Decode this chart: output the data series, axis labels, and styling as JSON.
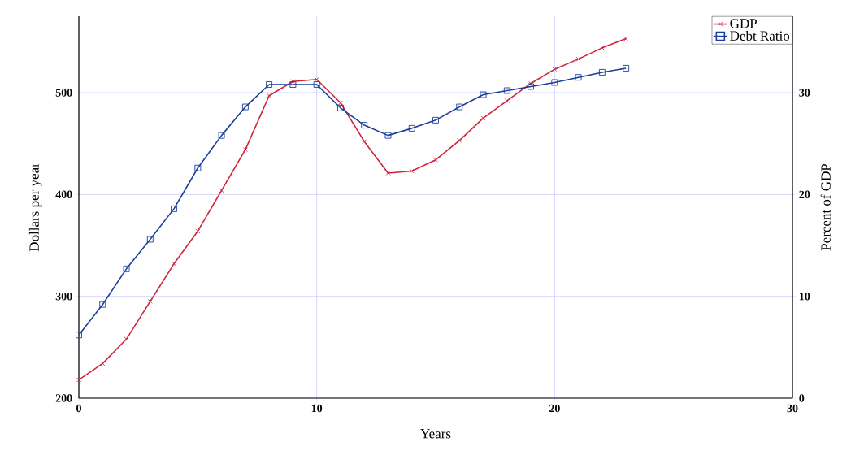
{
  "chart_data": {
    "type": "line",
    "xlabel": "Years",
    "ylabel": "Dollars per year",
    "y2label": "Percent of GDP",
    "x": [
      0,
      1,
      2,
      3,
      4,
      5,
      6,
      7,
      8,
      9,
      10,
      11,
      12,
      13,
      14,
      15,
      16,
      17,
      18,
      19,
      20,
      21,
      22,
      23
    ],
    "series": [
      {
        "name": "GDP",
        "color": "#d0243a",
        "marker": "cross",
        "values": [
          218,
          234,
          258,
          295,
          332,
          364,
          404,
          444,
          497,
          511,
          513,
          490,
          452,
          421,
          423,
          434,
          453,
          475,
          492,
          509,
          523,
          533,
          544,
          553
        ]
      },
      {
        "name": "Debt Ratio",
        "color": "#1c3f9c",
        "marker": "square",
        "axis": "y2",
        "values": [
          6.2,
          9.2,
          12.7,
          15.6,
          18.6,
          22.6,
          25.8,
          28.6,
          30.8,
          30.8,
          30.8,
          28.5,
          26.8,
          25.8,
          26.5,
          27.3,
          28.6,
          29.8,
          30.2,
          30.6,
          31.0,
          31.5,
          32.0,
          32.4
        ]
      }
    ],
    "xlim": [
      0,
      30
    ],
    "xticks": [
      0,
      10,
      20,
      30
    ],
    "ylim": [
      200,
      575
    ],
    "yticks": [
      200,
      300,
      400,
      500
    ],
    "y2lim": [
      0,
      37.5
    ],
    "y2ticks": [
      0,
      10,
      20,
      30
    ],
    "grid": true,
    "legend": "top right"
  }
}
